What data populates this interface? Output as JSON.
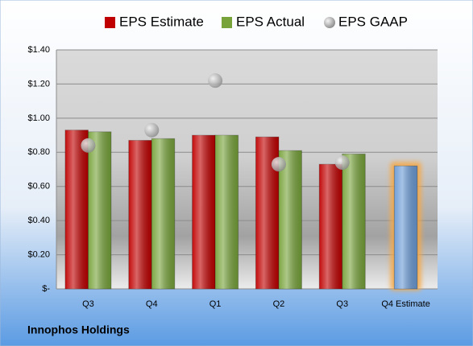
{
  "chart_data": {
    "type": "bar",
    "title": "Innophos Holdings",
    "categories": [
      "Q3",
      "Q4",
      "Q1",
      "Q2",
      "Q3",
      "Q4 Estimate"
    ],
    "series": [
      {
        "name": "EPS Estimate",
        "color": "#c00000",
        "values": [
          0.93,
          0.87,
          0.9,
          0.89,
          0.73,
          0.72
        ],
        "colors": [
          "#c00000",
          "#c00000",
          "#c00000",
          "#c00000",
          "#c00000",
          "#6b9bd6"
        ]
      },
      {
        "name": "EPS Actual",
        "color": "#77a33a",
        "values": [
          0.92,
          0.88,
          0.9,
          0.81,
          0.79,
          null
        ]
      },
      {
        "name": "EPS GAAP",
        "color": "#a6a6a6",
        "type": "scatter",
        "values": [
          0.84,
          0.93,
          1.22,
          0.73,
          0.74,
          null
        ]
      }
    ],
    "ylim": [
      0,
      1.4
    ],
    "yticks": [
      {
        "value": 0,
        "label": "$-"
      },
      {
        "value": 0.2,
        "label": "$0.20"
      },
      {
        "value": 0.4,
        "label": "$0.40"
      },
      {
        "value": 0.6,
        "label": "$0.60"
      },
      {
        "value": 0.8,
        "label": "$0.80"
      },
      {
        "value": 1.0,
        "label": "$1.00"
      },
      {
        "value": 1.2,
        "label": "$1.20"
      },
      {
        "value": 1.4,
        "label": "$1.40"
      }
    ],
    "grid": true,
    "legend": "top"
  }
}
